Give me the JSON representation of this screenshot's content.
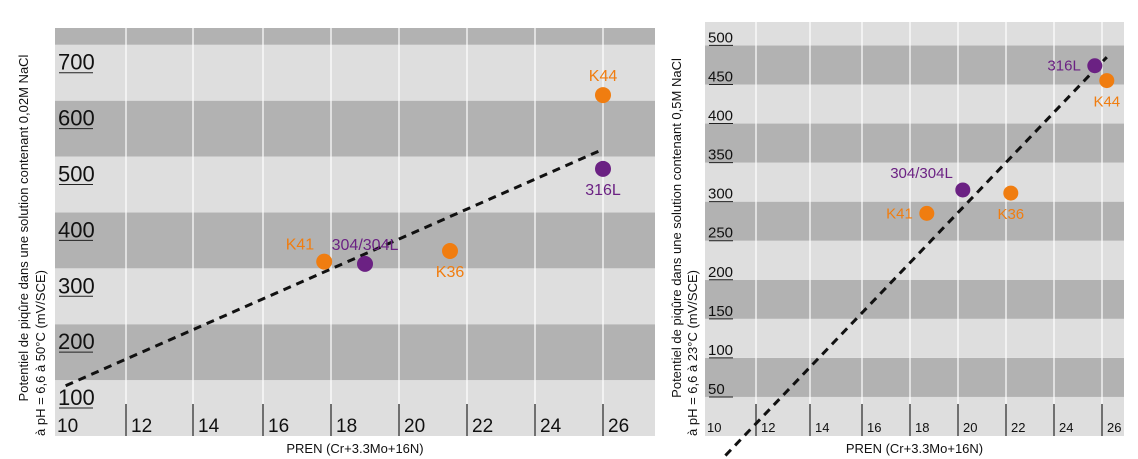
{
  "chart_data": [
    {
      "type": "scatter",
      "xlabel": "PREN (Cr+3.3Mo+16N)",
      "ylabel_line1": "Potentiel de piqûre dans une solution contenant 0,02M NaCl",
      "ylabel_line2": "à pH = 6,6 à 50°C (mV/SCE)",
      "xlim": [
        10,
        27
      ],
      "ylim": [
        50,
        780
      ],
      "x_ticks": [
        10,
        12,
        14,
        16,
        18,
        20,
        22,
        24,
        26
      ],
      "y_ticks": [
        100,
        200,
        300,
        400,
        500,
        600,
        700
      ],
      "colors": {
        "orange": "#f07d10",
        "purple": "#6b2183",
        "band_dark": "#b2b2b2",
        "band_light": "#dedede"
      },
      "trendline": {
        "x": [
          10.3,
          26
        ],
        "y": [
          140,
          563
        ]
      },
      "points": [
        {
          "label": "K41",
          "x": 17.8,
          "y": 362,
          "color": "#f07d10",
          "label_pos": "above-left"
        },
        {
          "label": "304/304L",
          "x": 19,
          "y": 358,
          "color": "#6b2183",
          "label_pos": "above"
        },
        {
          "label": "K36",
          "x": 21.5,
          "y": 381,
          "color": "#f07d10",
          "label_pos": "below"
        },
        {
          "label": "K44",
          "x": 26,
          "y": 660,
          "color": "#f07d10",
          "label_pos": "above"
        },
        {
          "label": "316L",
          "x": 26,
          "y": 528,
          "color": "#6b2183",
          "label_pos": "below"
        }
      ]
    },
    {
      "type": "scatter",
      "xlabel": "PREN (Cr+3.3Mo+16N)",
      "ylabel_line1": "Potentiel de piqûre dans une solution contenant 0,5M NaCl",
      "ylabel_line2": "à pH = 6,6 à 23°C (mV/SCE)",
      "xlim": [
        10,
        27
      ],
      "ylim": [
        0,
        530
      ],
      "x_ticks": [
        10,
        12,
        14,
        16,
        18,
        20,
        22,
        24,
        26
      ],
      "y_ticks": [
        50,
        100,
        150,
        200,
        250,
        300,
        350,
        400,
        450,
        500
      ],
      "colors": {
        "orange": "#f07d10",
        "purple": "#6b2183",
        "band_dark": "#b2b2b2",
        "band_light": "#dedede"
      },
      "trendline": {
        "x": [
          10.8,
          26.2
        ],
        "y": [
          -25,
          485
        ]
      },
      "points": [
        {
          "label": "K41",
          "x": 18.7,
          "y": 285,
          "color": "#f07d10",
          "label_pos": "left"
        },
        {
          "label": "304/304L",
          "x": 20.2,
          "y": 315,
          "color": "#6b2183",
          "label_pos": "above-left"
        },
        {
          "label": "K36",
          "x": 22.2,
          "y": 311,
          "color": "#f07d10",
          "label_pos": "below"
        },
        {
          "label": "316L",
          "x": 25.7,
          "y": 474,
          "color": "#6b2183",
          "label_pos": "left"
        },
        {
          "label": "K44",
          "x": 26.2,
          "y": 455,
          "color": "#f07d10",
          "label_pos": "below"
        }
      ]
    }
  ]
}
